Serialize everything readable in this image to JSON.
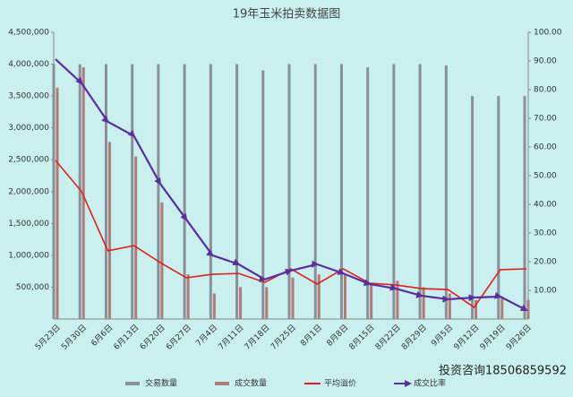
{
  "chart_data": {
    "type": "bar-line",
    "title": "19年玉米拍卖数据图",
    "categories": [
      "5月23日",
      "5月30日",
      "6月6日",
      "6月13日",
      "6月20日",
      "6月27日",
      "7月4日",
      "7月11日",
      "7月18日",
      "7月25日",
      "8月1日",
      "8月8日",
      "8月15日",
      "8月22日",
      "8月29日",
      "9月5日",
      "9月12日",
      "9月19日",
      "9月26日"
    ],
    "series": [
      {
        "name": "交易数量",
        "kind": "bar",
        "color": "#8a8f98",
        "values": [
          4000000,
          4000000,
          4000000,
          4000000,
          4000000,
          4000000,
          4000000,
          4000000,
          3900000,
          4000000,
          4000000,
          4000000,
          3950000,
          4000000,
          4000000,
          3980000,
          3500000,
          3500000,
          3500000
        ]
      },
      {
        "name": "成交数量",
        "kind": "bar",
        "color": "#b07a78",
        "values": [
          3630000,
          3950000,
          2780000,
          2550000,
          1830000,
          700000,
          400000,
          500000,
          500000,
          650000,
          700000,
          700000,
          550000,
          600000,
          500000,
          400000,
          300000,
          350000,
          300000
        ]
      },
      {
        "name": "平均溢价",
        "kind": "line",
        "axis": "y2",
        "color": "#e0201c",
        "values": [
          55.3,
          44.4,
          23.8,
          25.6,
          19.7,
          14.4,
          15.6,
          15.9,
          12.8,
          17.5,
          12.2,
          17.5,
          12.5,
          11.9,
          10.6,
          10.3,
          4.1,
          17.2,
          17.5
        ]
      },
      {
        "name": "成交比率",
        "kind": "line-arrow",
        "axis": "y2",
        "color": "#5b2d9e",
        "values": [
          90.6,
          82.2,
          68.8,
          63.8,
          47.2,
          34.7,
          22.2,
          19.1,
          13.8,
          16.9,
          19.1,
          15.9,
          12.2,
          10.6,
          8.1,
          6.9,
          7.5,
          7.8,
          3.1
        ]
      }
    ],
    "ylim": [
      0,
      4500000
    ],
    "yticks": [
      {
        "value": 500000,
        "label": "500,000"
      },
      {
        "value": 1000000,
        "label": "1,000,000"
      },
      {
        "value": 1500000,
        "label": "1,500,000"
      },
      {
        "value": 2000000,
        "label": "2,000,000"
      },
      {
        "value": 2500000,
        "label": "2,500,000"
      },
      {
        "value": 3000000,
        "label": "3,000,000"
      },
      {
        "value": 3500000,
        "label": "3,500,000"
      },
      {
        "value": 4000000,
        "label": "4,000,000"
      },
      {
        "value": 4500000,
        "label": "4,500,000"
      }
    ],
    "y2lim": [
      0,
      100
    ],
    "y2ticks": [
      {
        "value": 10,
        "label": "10.00"
      },
      {
        "value": 20,
        "label": "20.00"
      },
      {
        "value": 30,
        "label": "30.00"
      },
      {
        "value": 40,
        "label": "40.00"
      },
      {
        "value": 50,
        "label": "50.00"
      },
      {
        "value": 60,
        "label": "60.00"
      },
      {
        "value": 70,
        "label": "70.00"
      },
      {
        "value": 80,
        "label": "80.00"
      },
      {
        "value": 90,
        "label": "90.00"
      },
      {
        "value": 100,
        "label": "100.00"
      }
    ],
    "watermark": "投资咨询18506859592"
  }
}
